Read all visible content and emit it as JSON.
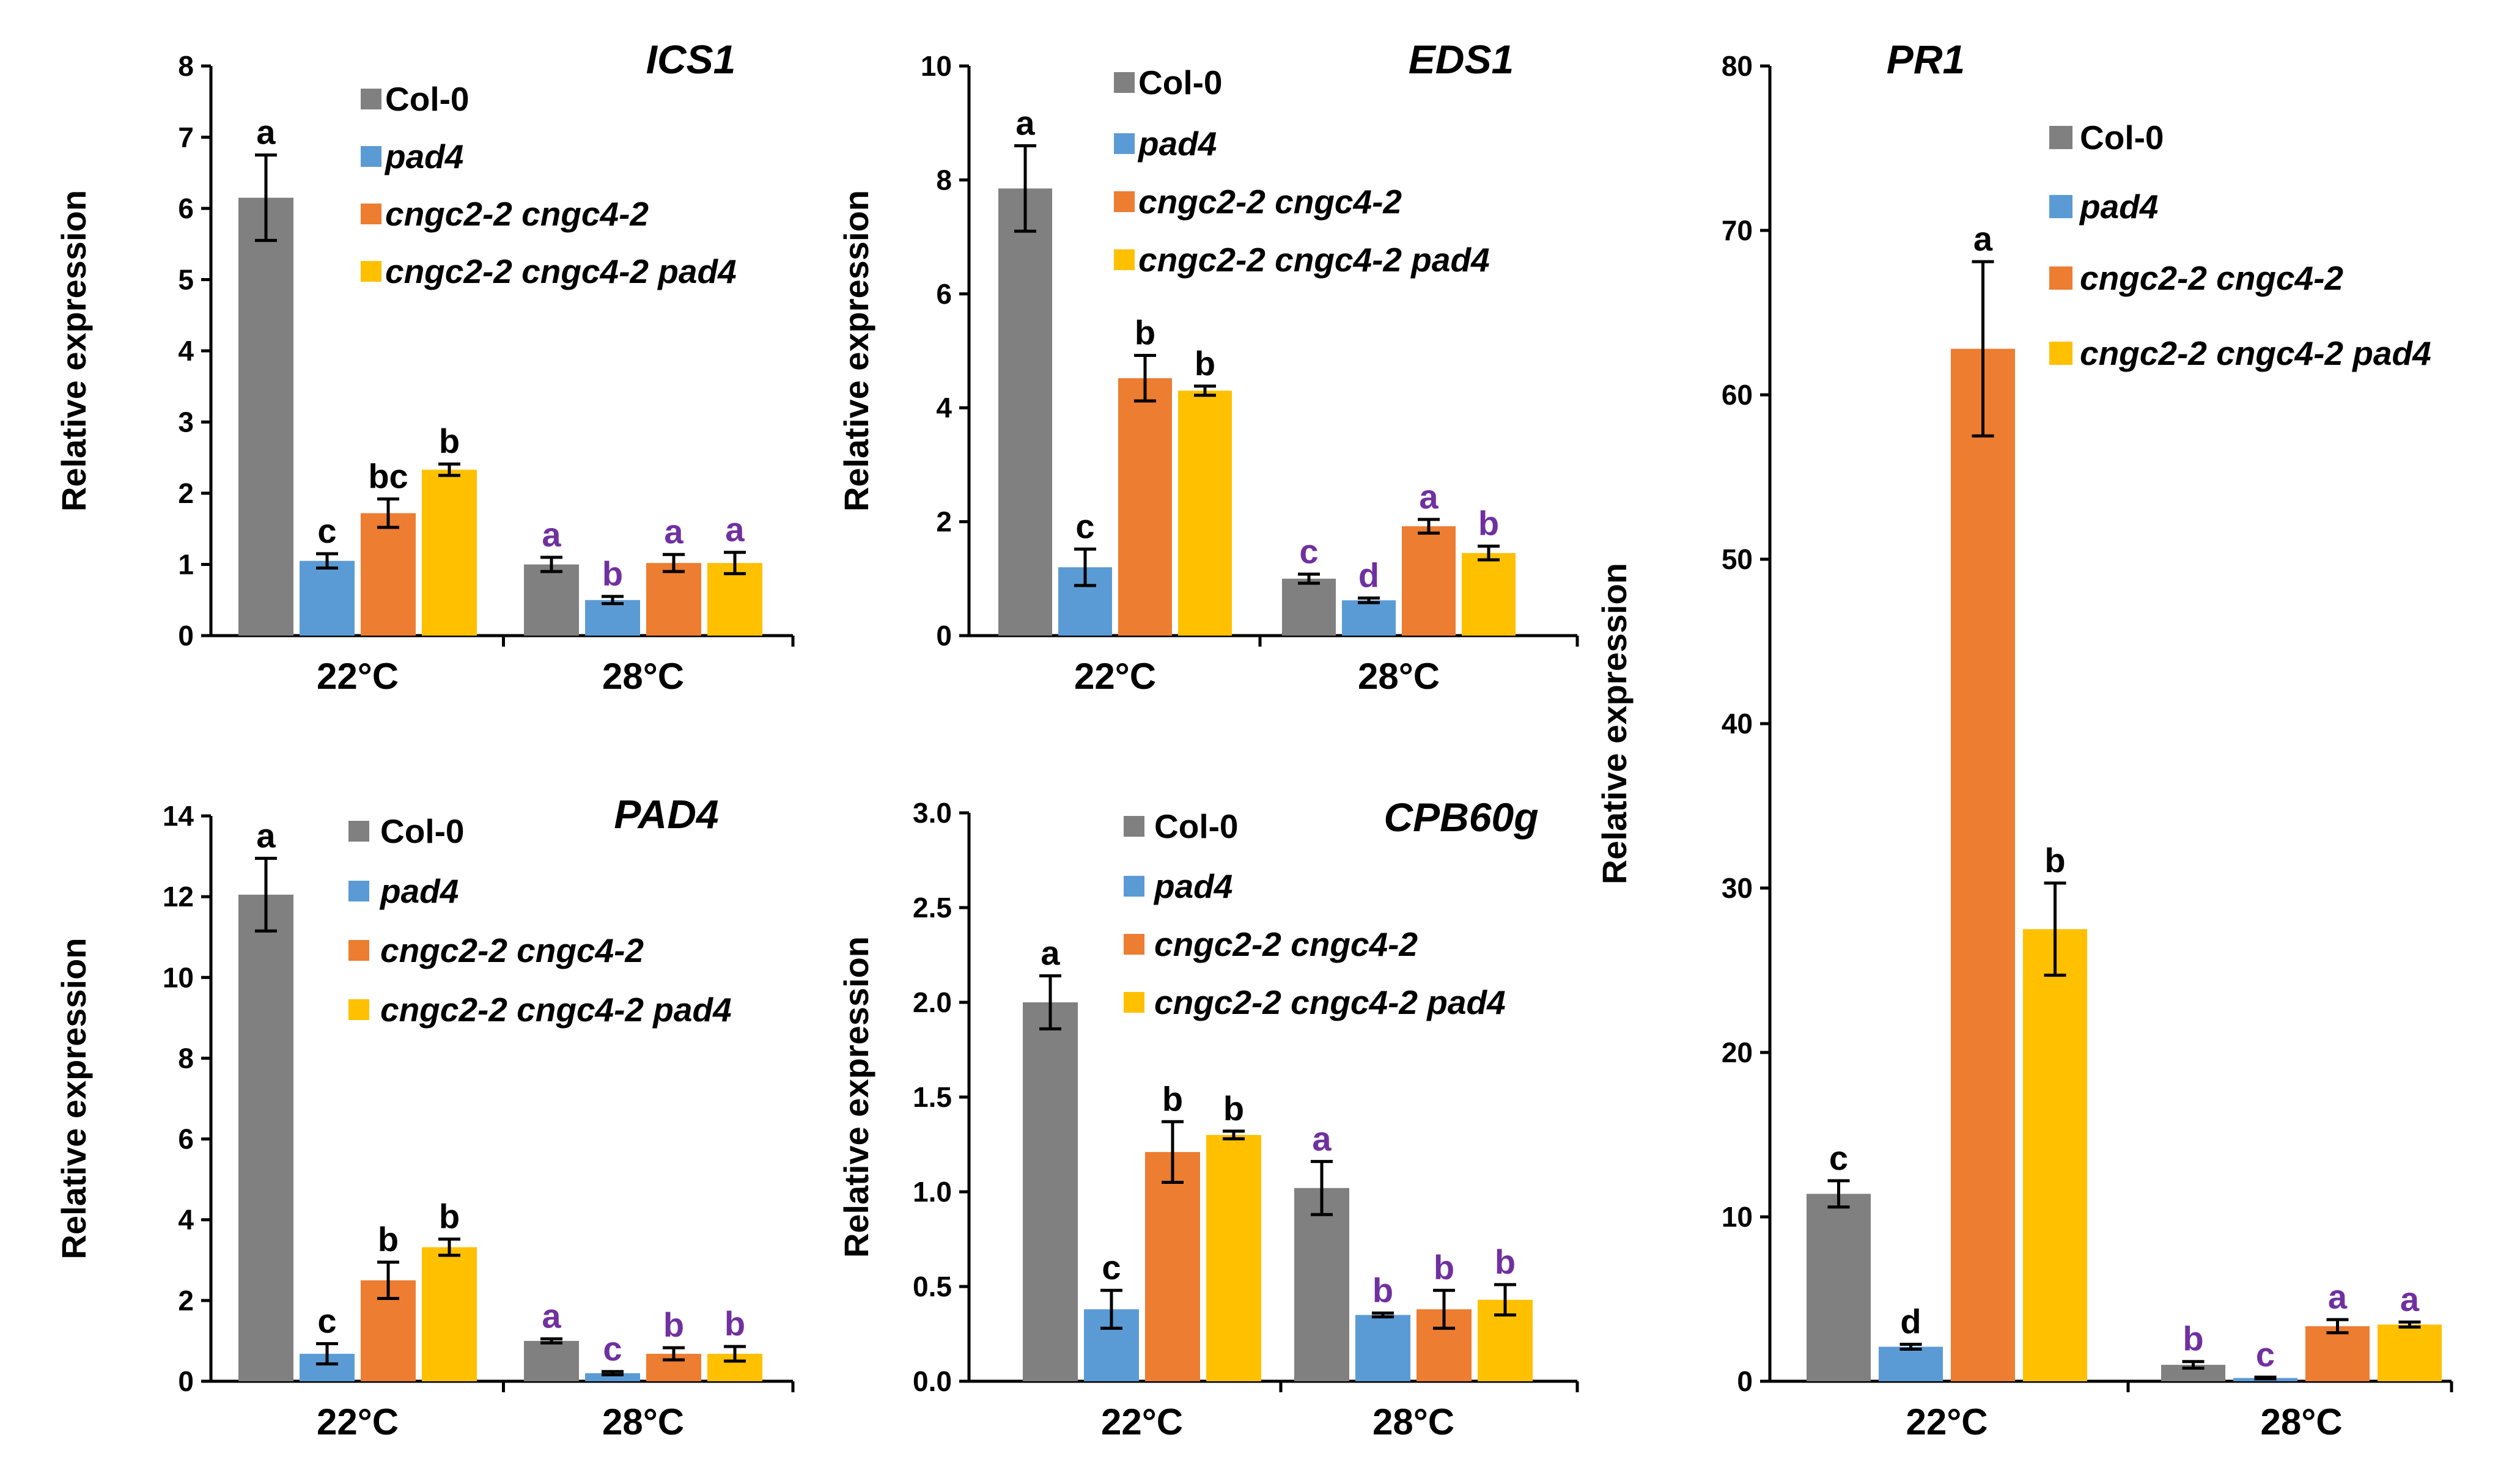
{
  "colors": {
    "Col-0": "#808080",
    "pad4": "#5B9BD5",
    "cngc2-2 cngc4-2": "#ED7D31",
    "cngc2-2 cngc4-2 pad4": "#FFC000",
    "sig_22": "#000000",
    "sig_28": "#7030A0"
  },
  "chart_data": [
    {
      "type": "bar",
      "title": "ICS1",
      "ylabel": "Relative expression",
      "xlabel": "",
      "categories": [
        "22°C",
        "28°C"
      ],
      "ylim": [
        0,
        8
      ],
      "yticks": [
        "0",
        "1",
        "2",
        "3",
        "4",
        "5",
        "6",
        "7",
        "8"
      ],
      "series": [
        {
          "name": "Col-0",
          "values": [
            6.15,
            1.0
          ],
          "errors": [
            0.6,
            0.1
          ],
          "letters": [
            "a",
            "a"
          ]
        },
        {
          "name": "pad4",
          "values": [
            1.05,
            0.5
          ],
          "errors": [
            0.1,
            0.05
          ],
          "letters": [
            "c",
            "b"
          ]
        },
        {
          "name": "cngc2-2 cngc4-2",
          "values": [
            1.72,
            1.02
          ],
          "errors": [
            0.2,
            0.12
          ],
          "letters": [
            "bc",
            "a"
          ]
        },
        {
          "name": "cngc2-2 cngc4-2 pad4",
          "values": [
            2.33,
            1.02
          ],
          "errors": [
            0.08,
            0.15
          ],
          "letters": [
            "b",
            "a"
          ]
        }
      ]
    },
    {
      "type": "bar",
      "title": "EDS1",
      "ylabel": "Relative expression",
      "xlabel": "",
      "categories": [
        "22°C",
        "28°C"
      ],
      "ylim": [
        0,
        10
      ],
      "yticks": [
        "0",
        "2",
        "4",
        "6",
        "8",
        "10"
      ],
      "series": [
        {
          "name": "Col-0",
          "values": [
            7.85,
            1.0
          ],
          "errors": [
            0.75,
            0.08
          ],
          "letters": [
            "a",
            "c"
          ]
        },
        {
          "name": "pad4",
          "values": [
            1.2,
            0.62
          ],
          "errors": [
            0.32,
            0.04
          ],
          "letters": [
            "c",
            "d"
          ]
        },
        {
          "name": "cngc2-2 cngc4-2",
          "values": [
            4.52,
            1.92
          ],
          "errors": [
            0.4,
            0.12
          ],
          "letters": [
            "b",
            "a"
          ]
        },
        {
          "name": "cngc2-2 cngc4-2 pad4",
          "values": [
            4.3,
            1.45
          ],
          "errors": [
            0.08,
            0.12
          ],
          "letters": [
            "b",
            "b"
          ]
        }
      ]
    },
    {
      "type": "bar",
      "title": "PR1",
      "ylabel": "Relative expression",
      "xlabel": "",
      "categories": [
        "22°C",
        "28°C"
      ],
      "ylim": [
        0,
        80
      ],
      "yticks": [
        "0",
        "10",
        "20",
        "30",
        "40",
        "50",
        "60",
        "70",
        "80"
      ],
      "series": [
        {
          "name": "Col-0",
          "values": [
            11.4,
            1.0
          ],
          "errors": [
            0.8,
            0.2
          ],
          "letters": [
            "c",
            "b"
          ]
        },
        {
          "name": "pad4",
          "values": [
            2.1,
            0.2
          ],
          "errors": [
            0.15,
            0.05
          ],
          "letters": [
            "d",
            "c"
          ]
        },
        {
          "name": "cngc2-2 cngc4-2",
          "values": [
            62.8,
            3.35
          ],
          "errors": [
            5.3,
            0.4
          ],
          "letters": [
            "a",
            "a"
          ]
        },
        {
          "name": "cngc2-2 cngc4-2 pad4",
          "values": [
            27.5,
            3.45
          ],
          "errors": [
            2.8,
            0.15
          ],
          "letters": [
            "b",
            "a"
          ]
        }
      ]
    },
    {
      "type": "bar",
      "title": "PAD4",
      "ylabel": "Relative expression",
      "xlabel": "",
      "categories": [
        "22°C",
        "28°C"
      ],
      "ylim": [
        0,
        14
      ],
      "yticks": [
        "0",
        "2",
        "4",
        "6",
        "8",
        "10",
        "12",
        "14"
      ],
      "series": [
        {
          "name": "Col-0",
          "values": [
            12.05,
            1.0
          ],
          "errors": [
            0.9,
            0.05
          ],
          "letters": [
            "a",
            "a"
          ]
        },
        {
          "name": "pad4",
          "values": [
            0.68,
            0.2
          ],
          "errors": [
            0.25,
            0.04
          ],
          "letters": [
            "c",
            "c"
          ]
        },
        {
          "name": "cngc2-2 cngc4-2",
          "values": [
            2.5,
            0.68
          ],
          "errors": [
            0.45,
            0.15
          ],
          "letters": [
            "b",
            "b"
          ]
        },
        {
          "name": "cngc2-2 cngc4-2 pad4",
          "values": [
            3.32,
            0.68
          ],
          "errors": [
            0.2,
            0.18
          ],
          "letters": [
            "b",
            "b"
          ]
        }
      ]
    },
    {
      "type": "bar",
      "title": "CPB60g",
      "ylabel": "Relative expression",
      "xlabel": "",
      "categories": [
        "22°C",
        "28°C"
      ],
      "ylim": [
        0,
        3.0
      ],
      "yticks": [
        "0.0",
        "0.5",
        "1.0",
        "1.5",
        "2.0",
        "2.5",
        "3.0"
      ],
      "series": [
        {
          "name": "Col-0",
          "values": [
            2.0,
            1.02
          ],
          "errors": [
            0.14,
            0.14
          ],
          "letters": [
            "a",
            "a"
          ]
        },
        {
          "name": "pad4",
          "values": [
            0.38,
            0.35
          ],
          "errors": [
            0.1,
            0.01
          ],
          "letters": [
            "c",
            "b"
          ]
        },
        {
          "name": "cngc2-2 cngc4-2",
          "values": [
            1.21,
            0.38
          ],
          "errors": [
            0.16,
            0.1
          ],
          "letters": [
            "b",
            "b"
          ]
        },
        {
          "name": "cngc2-2 cngc4-2 pad4",
          "values": [
            1.3,
            0.43
          ],
          "errors": [
            0.02,
            0.08
          ],
          "letters": [
            "b",
            "b"
          ]
        }
      ]
    }
  ]
}
